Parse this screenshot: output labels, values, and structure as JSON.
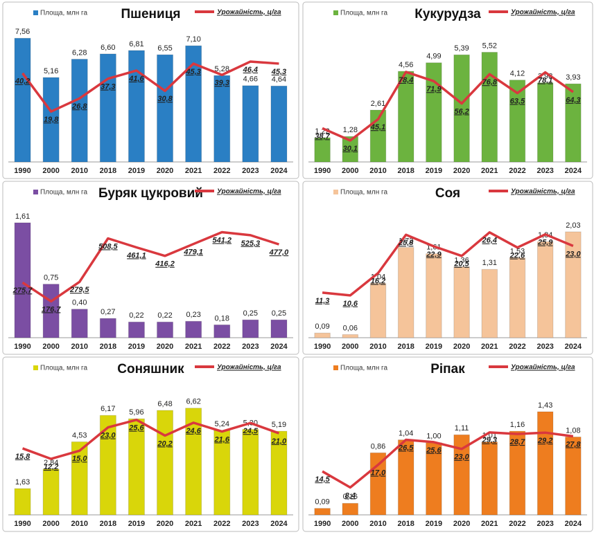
{
  "chart_data": [
    {
      "type": "bar_line",
      "title": "Пшениця",
      "categories": [
        "1990",
        "2000",
        "2010",
        "2018",
        "2019",
        "2020",
        "2021",
        "2022",
        "2023",
        "2024"
      ],
      "series": [
        {
          "name": "Площа, млн га",
          "color": "#2a7fc4",
          "values": [
            7.56,
            5.16,
            6.28,
            6.6,
            6.81,
            6.55,
            7.1,
            5.28,
            4.66,
            4.64
          ],
          "value_labels": [
            "7,56",
            "5,16",
            "6,28",
            "6,60",
            "6,81",
            "6,55",
            "7,10",
            "5,28",
            "4,66",
            "4,64"
          ]
        },
        {
          "name": "Урожайність, ц/га",
          "color": "#d9383e",
          "axis": "y2",
          "values": [
            40.2,
            19.8,
            26.8,
            37.3,
            41.6,
            30.8,
            45.3,
            39.3,
            46.4,
            45.3
          ],
          "value_labels": [
            "40,2",
            "19,8",
            "26,8",
            "37,3",
            "41,6",
            "30,8",
            "45,3",
            "39,3",
            "46,4",
            "45,3"
          ]
        }
      ],
      "ylim": [
        0,
        8.5
      ],
      "y2lim": [
        -7,
        67
      ]
    },
    {
      "type": "bar_line",
      "title": "Кукурудза",
      "categories": [
        "1990",
        "2000",
        "2010",
        "2018",
        "2019",
        "2020",
        "2021",
        "2022",
        "2023",
        "2024"
      ],
      "series": [
        {
          "name": "Площа, млн га",
          "color": "#6cb33f",
          "values": [
            1.22,
            1.28,
            2.61,
            4.56,
            4.99,
            5.39,
            5.52,
            4.12,
            3.98,
            3.93
          ],
          "value_labels": [
            "1,22",
            "1,28",
            "2,61",
            "4,56",
            "4,99",
            "5,39",
            "5,52",
            "4,12",
            "3,98",
            "3,93"
          ]
        },
        {
          "name": "Урожайність, ц/га",
          "color": "#d9383e",
          "axis": "y2",
          "values": [
            38.7,
            30.1,
            45.1,
            78.4,
            71.9,
            56.2,
            76.8,
            63.5,
            78.1,
            64.3
          ],
          "value_labels": [
            "38,7",
            "30,1",
            "45,1",
            "78,4",
            "71,9",
            "56,2",
            "76,8",
            "63,5",
            "78,1",
            "64,3"
          ]
        }
      ],
      "ylim": [
        0,
        7
      ],
      "y2lim": [
        15,
        113
      ]
    },
    {
      "type": "bar_line",
      "title": "Буряк цукровий",
      "categories": [
        "1990",
        "2000",
        "2010",
        "2018",
        "2019",
        "2020",
        "2021",
        "2022",
        "2023",
        "2024"
      ],
      "series": [
        {
          "name": "Площа, млн га",
          "color": "#7b4ea3",
          "values": [
            1.61,
            0.75,
            0.4,
            0.27,
            0.22,
            0.22,
            0.23,
            0.18,
            0.25,
            0.25
          ],
          "value_labels": [
            "1,61",
            "0,75",
            "0,40",
            "0,27",
            "0,22",
            "0,22",
            "0,23",
            "0,18",
            "0,25",
            "0,25"
          ]
        },
        {
          "name": "Урожайність, ц/га",
          "color": "#d9383e",
          "axis": "y2",
          "values": [
            275.7,
            176.7,
            279.5,
            508.5,
            461.1,
            416.2,
            479.1,
            541.2,
            525.3,
            477.0
          ],
          "value_labels": [
            "275,7",
            "176,7",
            "279,5",
            "508,5",
            "461,1",
            "416,2",
            "479,1",
            "541,2",
            "525,3",
            "477,0"
          ]
        }
      ],
      "ylim": [
        0,
        1.9
      ],
      "y2lim": [
        -15,
        700
      ]
    },
    {
      "type": "bar_line",
      "title": "Соя",
      "categories": [
        "1990",
        "2000",
        "2010",
        "2018",
        "2019",
        "2020",
        "2021",
        "2022",
        "2023",
        "2024"
      ],
      "series": [
        {
          "name": "Площа, млн га",
          "color": "#f5c49a",
          "values": [
            0.09,
            0.06,
            1.04,
            1.73,
            1.61,
            1.36,
            1.31,
            1.53,
            1.84,
            2.03
          ],
          "value_labels": [
            "0,09",
            "0,06",
            "1,04",
            "1,73",
            "1,61",
            "1,36",
            "1,31",
            "1,53",
            "1,84",
            "2,03"
          ]
        },
        {
          "name": "Урожайність, ц/га",
          "color": "#d9383e",
          "axis": "y2",
          "values": [
            11.3,
            10.6,
            16.2,
            25.8,
            22.9,
            20.5,
            26.4,
            22.6,
            25.9,
            23.0
          ],
          "value_labels": [
            "11,3",
            "10,6",
            "16,2",
            "25,8",
            "22,9",
            "20,5",
            "26,4",
            "22,6",
            "25,9",
            "23,0"
          ]
        }
      ],
      "ylim": [
        0,
        2.6
      ],
      "y2lim": [
        0,
        34
      ]
    },
    {
      "type": "bar_line",
      "title": "Соняшник",
      "categories": [
        "1990",
        "2000",
        "2010",
        "2018",
        "2019",
        "2020",
        "2021",
        "2022",
        "2023",
        "2024"
      ],
      "series": [
        {
          "name": "Площа, млн га",
          "color": "#d9d60a",
          "values": [
            1.63,
            2.84,
            4.53,
            6.17,
            5.96,
            6.48,
            6.62,
            5.24,
            5.3,
            5.19
          ],
          "value_labels": [
            "1,63",
            "2,84",
            "4,53",
            "6,17",
            "5,96",
            "6,48",
            "6,62",
            "5,24",
            "5,30",
            "5,19"
          ]
        },
        {
          "name": "Урожайність, ц/га",
          "color": "#d9383e",
          "axis": "y2",
          "values": [
            15.8,
            12.2,
            15.0,
            23.0,
            25.6,
            20.2,
            24.6,
            21.6,
            24.5,
            21.0
          ],
          "value_labels": [
            "15,8",
            "12,2",
            "15,0",
            "23,0",
            "25,6",
            "20,2",
            "24,6",
            "21,6",
            "24,5",
            "21,0"
          ]
        }
      ],
      "ylim": [
        0,
        8.5
      ],
      "y2lim": [
        -7,
        40
      ]
    },
    {
      "type": "bar_line",
      "title": "Ріпак",
      "categories": [
        "1990",
        "2000",
        "2010",
        "2018",
        "2019",
        "2020",
        "2021",
        "2022",
        "2023",
        "2024"
      ],
      "series": [
        {
          "name": "Площа, млн га",
          "color": "#ee7d1f",
          "values": [
            0.09,
            0.16,
            0.86,
            1.04,
            1.0,
            1.11,
            1.01,
            1.16,
            1.43,
            1.08
          ],
          "value_labels": [
            "0,09",
            "0,16",
            "0,86",
            "1,04",
            "1,00",
            "1,11",
            "1,01",
            "1,16",
            "1,43",
            "1,08"
          ]
        },
        {
          "name": "Урожайність, ц/га",
          "color": "#d9383e",
          "axis": "y2",
          "values": [
            14.5,
            8.4,
            17.0,
            26.5,
            25.6,
            23.0,
            29.3,
            28.7,
            29.2,
            27.8
          ],
          "value_labels": [
            "14,5",
            "8,4",
            "17,0",
            "26,5",
            "25,6",
            "23,0",
            "29,3",
            "28,7",
            "29,2",
            "27,8"
          ]
        }
      ],
      "ylim": [
        0,
        1.9
      ],
      "y2lim": [
        -2,
        50
      ]
    }
  ]
}
